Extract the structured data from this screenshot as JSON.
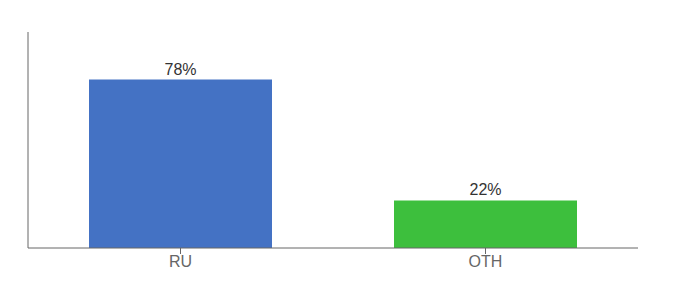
{
  "chart_data": {
    "type": "bar",
    "categories": [
      "RU",
      "OTH"
    ],
    "values": [
      78,
      22
    ],
    "colors": [
      "#4472c4",
      "#3dbf3d"
    ],
    "value_labels": [
      "78%",
      "22%"
    ],
    "data_labels": true,
    "ylim": [
      0,
      100
    ],
    "tick_labels": "x"
  }
}
